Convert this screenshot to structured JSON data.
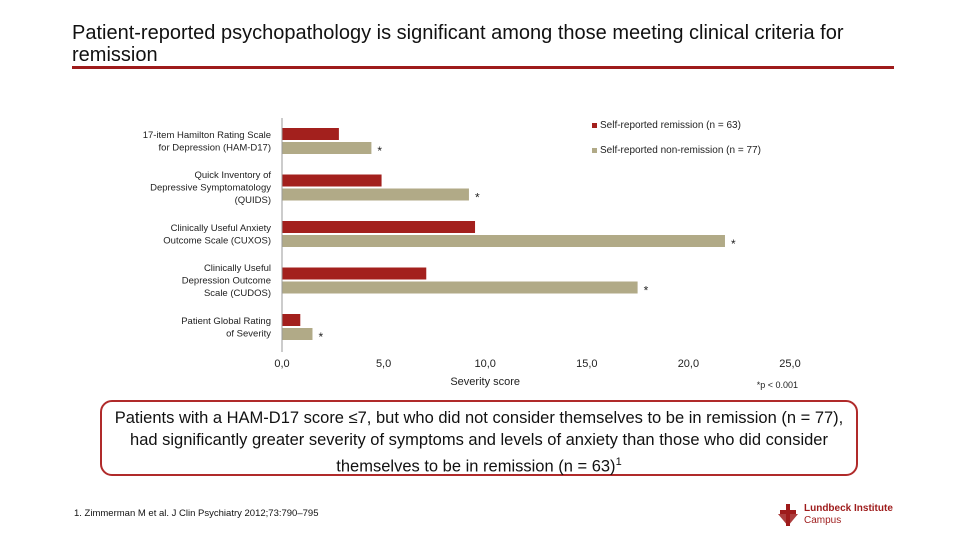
{
  "title": "Patient-reported psychopathology is significant among those meeting clinical criteria for remission",
  "chart_data": {
    "type": "bar",
    "orientation": "horizontal",
    "categories": [
      [
        "17-item Hamilton Rating Scale",
        "for Depression (HAM-D17)"
      ],
      [
        "Quick Inventory of",
        "Depressive Symptomatology",
        "(QUIDS)"
      ],
      [
        "Clinically Useful Anxiety",
        "Outcome Scale (CUXOS)"
      ],
      [
        "Clinically Useful",
        "Depression Outcome",
        "Scale (CUDOS)"
      ],
      [
        "Patient Global Rating",
        "of Severity"
      ]
    ],
    "series": [
      {
        "name": "Self-reported remission (n = 63)",
        "color": "#a3201d",
        "values": [
          2.8,
          4.9,
          9.5,
          7.1,
          0.9
        ]
      },
      {
        "name": "Self-reported non-remission (n = 77)",
        "color": "#b1aa87",
        "values": [
          4.4,
          9.2,
          21.8,
          17.5,
          1.5
        ]
      }
    ],
    "significance_marks": [
      "*",
      "*",
      "*",
      "*",
      "*"
    ],
    "xlim": [
      0,
      25
    ],
    "xticks": [
      "0,0",
      "5,0",
      "10,0",
      "15,0",
      "20,0",
      "25,0"
    ],
    "xlabel": "Severity score",
    "legend_position": "top-right",
    "annotation": "*p < 0.001"
  },
  "callout": {
    "text": "Patients with a HAM-D17 score ≤7, but who did not consider themselves to be in remission (n = 77), had significantly greater severity of symptoms and levels of anxiety than those who did consider themselves to be in remission (n = 63)",
    "superscript": "1"
  },
  "footnote": "1. Zimmerman M et al. J Clin Psychiatry 2012;73:790–795",
  "logo": {
    "line1": "Lundbeck Institute",
    "line2": "Campus"
  }
}
